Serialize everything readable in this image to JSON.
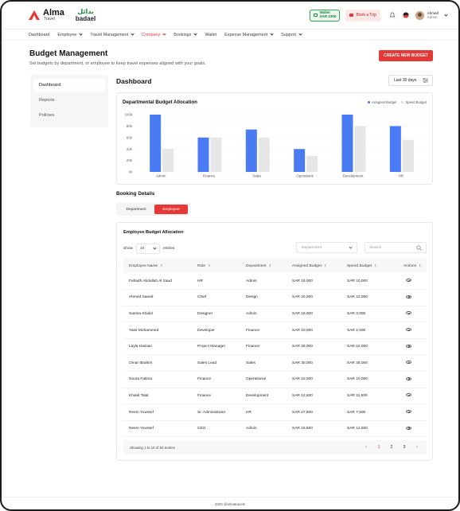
{
  "brand": {
    "name": "Alma",
    "sub": "Travel",
    "partner_ar": "بدائل",
    "partner_en": "badael"
  },
  "header": {
    "wallet_label": "Wallet",
    "wallet_amount": "SAR 2300",
    "book_trip": "Book a Trip",
    "user_name": "Ahmed",
    "user_role": "Admin"
  },
  "nav": {
    "items": [
      {
        "label": "Dashboard",
        "dropdown": false
      },
      {
        "label": "Employee",
        "dropdown": true
      },
      {
        "label": "Travel Management",
        "dropdown": true
      },
      {
        "label": "Company",
        "dropdown": true,
        "active": true
      },
      {
        "label": "Bookings",
        "dropdown": true
      },
      {
        "label": "Wallet",
        "dropdown": false
      },
      {
        "label": "Expense Management",
        "dropdown": true
      },
      {
        "label": "Support",
        "dropdown": true
      }
    ]
  },
  "page": {
    "title": "Budget Management",
    "subtitle": "Set budgets by department, or employee to keep travel expenses aligned with your goals.",
    "create_button": "CREATE NEW BUDGET"
  },
  "sidebar": {
    "items": [
      {
        "label": "Dashboard",
        "active": true
      },
      {
        "label": "Reports"
      },
      {
        "label": "Policies"
      }
    ]
  },
  "dashboard": {
    "title": "Dashboard",
    "range": "Last 30 days"
  },
  "chart_data": {
    "type": "bar",
    "title": "Departmental Budget Allocation",
    "categories": [
      "Admin",
      "Finance",
      "Sales",
      "Operations",
      "Development",
      "HR"
    ],
    "series": [
      {
        "name": "Assigned Budget",
        "color": "#4a7bf5",
        "values": [
          100000,
          60000,
          74000,
          40000,
          100000,
          80000
        ]
      },
      {
        "name": "Spend Budget",
        "color": "#e6e6e6",
        "values": [
          40000,
          60000,
          60000,
          28000,
          80000,
          56000
        ]
      }
    ],
    "yticks": [
      "0k",
      "20k",
      "40k",
      "60k",
      "80k",
      "100k"
    ],
    "ylim": [
      0,
      100000
    ],
    "legend_position": "top-right",
    "grid": true
  },
  "booking": {
    "title": "Booking Details",
    "tabs": [
      {
        "label": "Department"
      },
      {
        "label": "Employee",
        "active": true
      }
    ]
  },
  "table": {
    "title": "Employee Budget Allocation",
    "show_label": "Show",
    "entries_value": "10",
    "entries_label": "entries",
    "dept_placeholder": "Department",
    "search_placeholder": "Search",
    "columns": [
      "Employee Name",
      "Role",
      "Department",
      "Assigned Budget",
      "Spend Budget",
      "Actions"
    ],
    "rows": [
      [
        "Fahadh Abdullah Al Saud",
        "HR",
        "Admin",
        "SAR 15,000",
        "SAR 10,000"
      ],
      [
        "Ahmed Saeed",
        "Chief",
        "Design",
        "SAR 20,000",
        "SAR 12,000"
      ],
      [
        "Samira Khalid",
        "Designer",
        "Admin",
        "SAR 18,000",
        "SAR 3,000"
      ],
      [
        "Yasir Mohammed",
        "Developer",
        "Finance",
        "SAR 10,000",
        "SAR 2,000"
      ],
      [
        "Layla Hassan",
        "Project Manager",
        "Finance",
        "SAR 25,000",
        "SAR 22,000"
      ],
      [
        "Omar Ibrahim",
        "Sales Lead",
        "Sales",
        "SAR 30,000",
        "SAR 28,000"
      ],
      [
        "Noura Fatima",
        "Finance",
        "Operational",
        "SAR 22,000",
        "SAR 10,000"
      ],
      [
        "Khalid Talal",
        "Finance",
        "Development",
        "SAR 12,500",
        "SAR 11,500"
      ],
      [
        "Reem Youssef",
        "Sr. Administrator",
        "HR",
        "SAR 27,500",
        "SAR 7,500"
      ],
      [
        "Neem Youssef",
        "CEO",
        "Admin",
        "SAR 19,500",
        "SAR 12,500"
      ]
    ],
    "summary": "Showing 1 to 10 of 62 entries",
    "pages": [
      "1",
      "2",
      "3"
    ],
    "current_page": "1"
  },
  "footer": {
    "text": "2025 @almatravels"
  }
}
